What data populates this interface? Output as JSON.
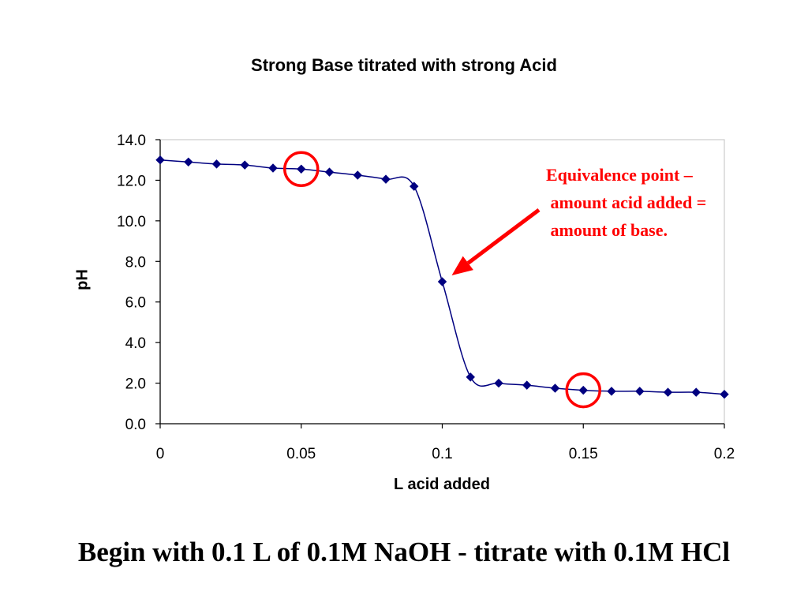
{
  "chart_data": {
    "type": "line",
    "title": "Strong Base titrated with strong Acid",
    "xlabel": "L acid added",
    "ylabel": "pH",
    "xlim": [
      0,
      0.2
    ],
    "ylim": [
      0,
      14
    ],
    "x_ticks": [
      "0",
      "0.05",
      "0.1",
      "0.15",
      "0.2"
    ],
    "y_ticks": [
      "0.0",
      "2.0",
      "4.0",
      "6.0",
      "8.0",
      "10.0",
      "12.0",
      "14.0"
    ],
    "grid": false,
    "series": [
      {
        "color": "#000080",
        "x": [
          0,
          0.01,
          0.02,
          0.03,
          0.04,
          0.05,
          0.06,
          0.07,
          0.08,
          0.09,
          0.1,
          0.11,
          0.12,
          0.13,
          0.14,
          0.15,
          0.16,
          0.17,
          0.18,
          0.19,
          0.2
        ],
        "y": [
          13.0,
          12.9,
          12.8,
          12.75,
          12.6,
          12.55,
          12.4,
          12.25,
          12.05,
          11.7,
          7.0,
          2.3,
          2.0,
          1.9,
          1.75,
          1.65,
          1.6,
          1.6,
          1.55,
          1.55,
          1.45
        ]
      }
    ],
    "highlight_circles": [
      {
        "x": 0.05,
        "y": 12.55,
        "color": "#ff0000"
      },
      {
        "x": 0.15,
        "y": 1.65,
        "color": "#ff0000"
      }
    ],
    "annotation": {
      "lines": [
        "Equivalence point –",
        " amount acid added =",
        " amount of base."
      ],
      "color": "#ff0000",
      "points_to": {
        "x": 0.1,
        "y": 7.0
      }
    }
  },
  "footer": "Begin with 0.1 L of 0.1M NaOH - titrate with 0.1M HCl"
}
